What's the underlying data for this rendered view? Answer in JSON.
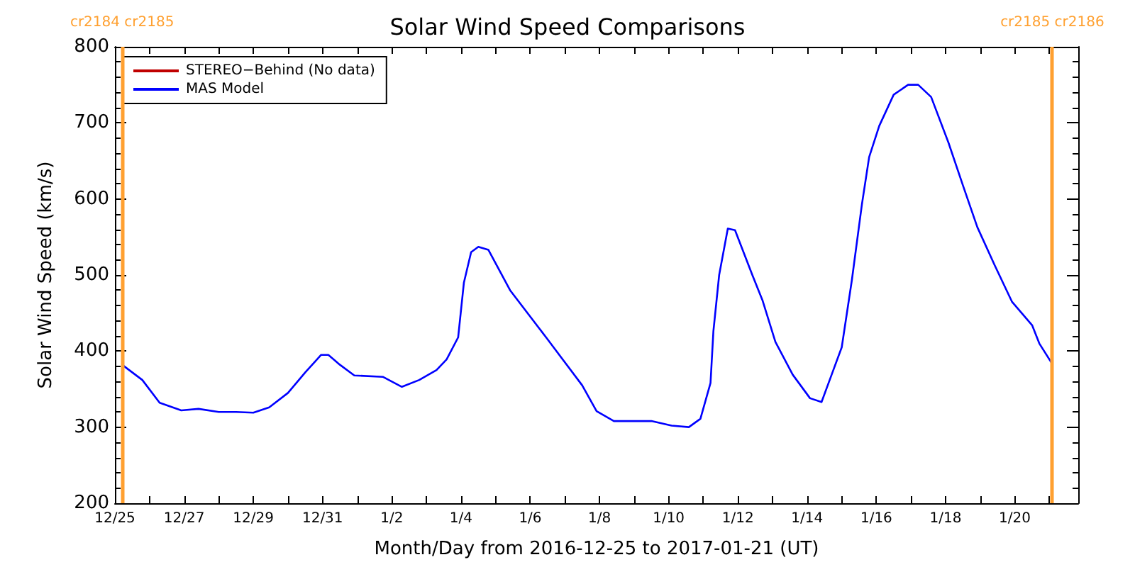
{
  "chart_data": {
    "type": "line",
    "title": "Solar Wind Speed Comparisons",
    "xlabel": "Month/Day from 2016-12-25 to 2017-01-21 (UT)",
    "ylabel": "Solar Wind Speed (km/s)",
    "xlim": [
      "2016-12-25T00:00",
      "2017-01-21T20:00"
    ],
    "xticks": [
      {
        "value": "2016-12-25T00:00",
        "label": "12/25"
      },
      {
        "value": "2016-12-26T00:00",
        "label": null
      },
      {
        "value": "2016-12-27T00:00",
        "label": "12/27"
      },
      {
        "value": "2016-12-28T00:00",
        "label": null
      },
      {
        "value": "2016-12-29T00:00",
        "label": "12/29"
      },
      {
        "value": "2016-12-30T00:00",
        "label": null
      },
      {
        "value": "2016-12-31T00:00",
        "label": "12/31"
      },
      {
        "value": "2017-01-01T00:00",
        "label": null
      },
      {
        "value": "2017-01-02T00:00",
        "label": "1/2"
      },
      {
        "value": "2017-01-03T00:00",
        "label": null
      },
      {
        "value": "2017-01-04T00:00",
        "label": "1/4"
      },
      {
        "value": "2017-01-05T00:00",
        "label": null
      },
      {
        "value": "2017-01-06T00:00",
        "label": "1/6"
      },
      {
        "value": "2017-01-07T00:00",
        "label": null
      },
      {
        "value": "2017-01-08T00:00",
        "label": "1/8"
      },
      {
        "value": "2017-01-09T00:00",
        "label": null
      },
      {
        "value": "2017-01-10T00:00",
        "label": "1/10"
      },
      {
        "value": "2017-01-11T00:00",
        "label": null
      },
      {
        "value": "2017-01-12T00:00",
        "label": "1/12"
      },
      {
        "value": "2017-01-13T00:00",
        "label": null
      },
      {
        "value": "2017-01-14T00:00",
        "label": "1/14"
      },
      {
        "value": "2017-01-15T00:00",
        "label": null
      },
      {
        "value": "2017-01-16T00:00",
        "label": "1/16"
      },
      {
        "value": "2017-01-17T00:00",
        "label": null
      },
      {
        "value": "2017-01-18T00:00",
        "label": "1/18"
      },
      {
        "value": "2017-01-19T00:00",
        "label": null
      },
      {
        "value": "2017-01-20T00:00",
        "label": "1/20"
      },
      {
        "value": "2017-01-21T00:00",
        "label": null
      }
    ],
    "ylim": [
      200,
      800
    ],
    "yticks": [
      200,
      300,
      400,
      500,
      600,
      700,
      800
    ],
    "grid": false,
    "legend": "top left",
    "marker": "none",
    "line_style": "solid",
    "x": [
      "2016-12-25T05:00",
      "2016-12-25T19:00",
      "2016-12-26T07:00",
      "2016-12-26T22:00",
      "2016-12-27T10:00",
      "2016-12-28T00:00",
      "2016-12-28T12:00",
      "2016-12-29T00:00",
      "2016-12-29T11:00",
      "2016-12-30T00:00",
      "2016-12-30T12:00",
      "2016-12-30T23:00",
      "2016-12-31T04:00",
      "2016-12-31T12:00",
      "2016-12-31T22:00",
      "2017-01-01T18:00",
      "2017-01-02T07:00",
      "2017-01-02T19:00",
      "2017-01-03T07:00",
      "2017-01-03T14:00",
      "2017-01-03T22:00",
      "2017-01-04T02:00",
      "2017-01-04T07:00",
      "2017-01-04T12:00",
      "2017-01-04T19:00",
      "2017-01-05T10:00",
      "2017-01-06T11:00",
      "2017-01-07T12:00",
      "2017-01-07T22:00",
      "2017-01-08T10:00",
      "2017-01-09T12:00",
      "2017-01-10T02:00",
      "2017-01-10T14:00",
      "2017-01-10T22:00",
      "2017-01-11T05:00",
      "2017-01-11T07:00",
      "2017-01-11T11:00",
      "2017-01-11T17:00",
      "2017-01-11T22:00",
      "2017-01-12T10:00",
      "2017-01-12T17:00",
      "2017-01-13T02:00",
      "2017-01-13T14:00",
      "2017-01-14T02:00",
      "2017-01-14T10:00",
      "2017-01-14T17:00",
      "2017-01-15T00:00",
      "2017-01-15T07:00",
      "2017-01-15T14:00",
      "2017-01-15T19:00",
      "2017-01-16T02:00",
      "2017-01-16T12:00",
      "2017-01-16T22:00",
      "2017-01-17T05:00",
      "2017-01-17T14:00",
      "2017-01-18T02:00",
      "2017-01-18T12:00",
      "2017-01-18T22:00",
      "2017-01-19T10:00",
      "2017-01-19T22:00",
      "2017-01-20T12:00",
      "2017-01-20T17:00",
      "2017-01-21T02:00"
    ],
    "series": [
      {
        "name": "STEREO−Behind (No data)",
        "color": "#c00000",
        "values": [
          null,
          null,
          null,
          null,
          null,
          null,
          null,
          null,
          null,
          null,
          null,
          null,
          null,
          null,
          null,
          null,
          null,
          null,
          null,
          null,
          null,
          null,
          null,
          null,
          null,
          null,
          null,
          null,
          null,
          null,
          null,
          null,
          null,
          null,
          null,
          null,
          null,
          null,
          null,
          null,
          null,
          null,
          null,
          null,
          null,
          null,
          null,
          null,
          null,
          null,
          null,
          null,
          null,
          null,
          null,
          null,
          null,
          null,
          null,
          null,
          null,
          null,
          null
        ]
      },
      {
        "name": "MAS Model",
        "color": "#0000ff",
        "values": [
          382,
          362,
          332,
          322,
          324,
          320,
          320,
          319,
          326,
          345,
          372,
          395,
          395,
          382,
          368,
          366,
          353,
          362,
          375,
          389,
          418,
          490,
          530,
          537,
          533,
          480,
          418,
          355,
          321,
          308,
          308,
          302,
          300,
          311,
          358,
          426,
          500,
          561,
          559,
          500,
          467,
          412,
          369,
          338,
          333,
          369,
          405,
          493,
          593,
          655,
          696,
          737,
          750,
          750,
          734,
          674,
          618,
          563,
          513,
          465,
          434,
          410,
          383
        ]
      }
    ],
    "ref_lines": [
      {
        "axis": "x",
        "value": "2016-12-25T05:00",
        "label": "cr2184 cr2185",
        "color": "#ffa030"
      },
      {
        "axis": "x",
        "value": "2017-01-21T02:00",
        "label": "cr2185 cr2186",
        "color": "#ffa030"
      }
    ]
  }
}
